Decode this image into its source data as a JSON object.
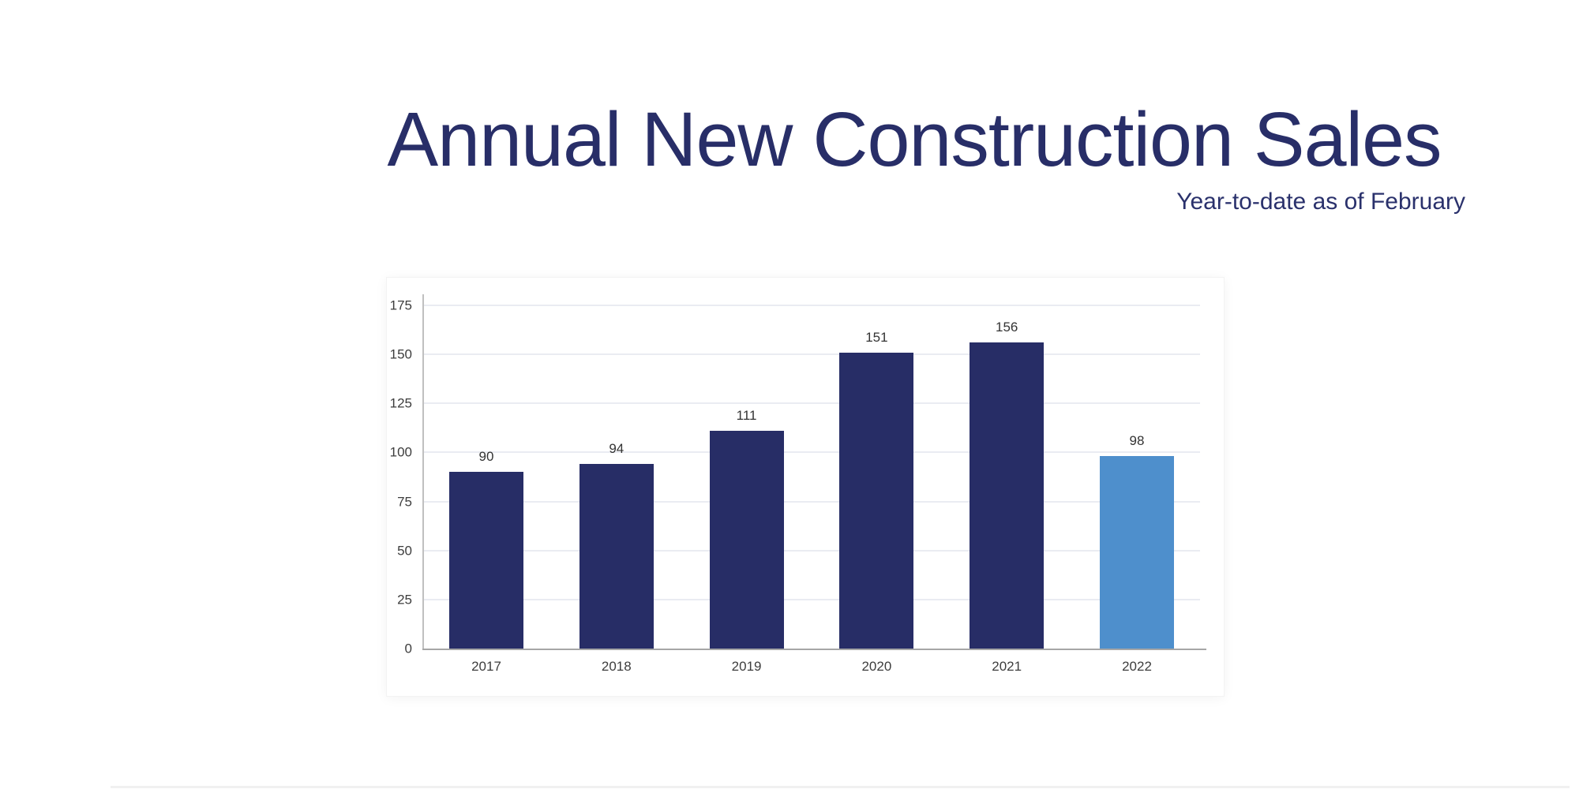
{
  "header": {
    "title": "Annual New Construction Sales",
    "subtitle": "Year-to-date as of February"
  },
  "colors": {
    "title_text": "#282E68",
    "subtitle_text": "#2A316C",
    "bar_default": "#272D66",
    "bar_highlight": "#4E8FCC",
    "gridline": "#EAECF2",
    "y_axis_line": "#C0C0C0",
    "x_axis_line": "#A6A6A6",
    "tick_label": "#3D3D3D",
    "value_label": "#333333"
  },
  "chart_data": {
    "type": "bar",
    "title": "Annual New Construction Sales",
    "subtitle": "Year-to-date as of February",
    "categories": [
      "2017",
      "2018",
      "2019",
      "2020",
      "2021",
      "2022"
    ],
    "values": [
      90,
      94,
      111,
      151,
      156,
      98
    ],
    "bar_colors": [
      "#272D66",
      "#272D66",
      "#272D66",
      "#272D66",
      "#272D66",
      "#4E8FCC"
    ],
    "highlighted_category": "2022",
    "xlabel": "",
    "ylabel": "",
    "ylim": [
      0,
      175
    ],
    "yticks": [
      0,
      25,
      50,
      75,
      100,
      125,
      150,
      175
    ],
    "grid": true,
    "legend": false,
    "value_labels": true
  }
}
